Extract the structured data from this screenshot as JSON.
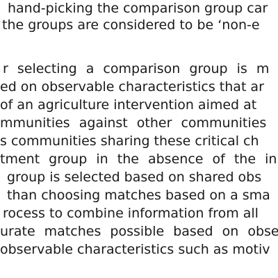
{
  "document": {
    "paragraph_1": [
      "hand-picking the comparison group car",
      "the groups are considered to be ‘non-e"
    ],
    "paragraph_2": [
      "r selecting a comparison group is m",
      "ed on observable characteristics that ar",
      "of an agriculture intervention aimed at",
      "mmunities against other communities",
      "s communities sharing these critical ch",
      "tment group in the absence of the in",
      "group is selected based on shared obs",
      "than choosing matches based on a sma",
      "rocess to combine information from all",
      "urate matches possible based on obse",
      "observable characteristics such as motiv"
    ]
  }
}
